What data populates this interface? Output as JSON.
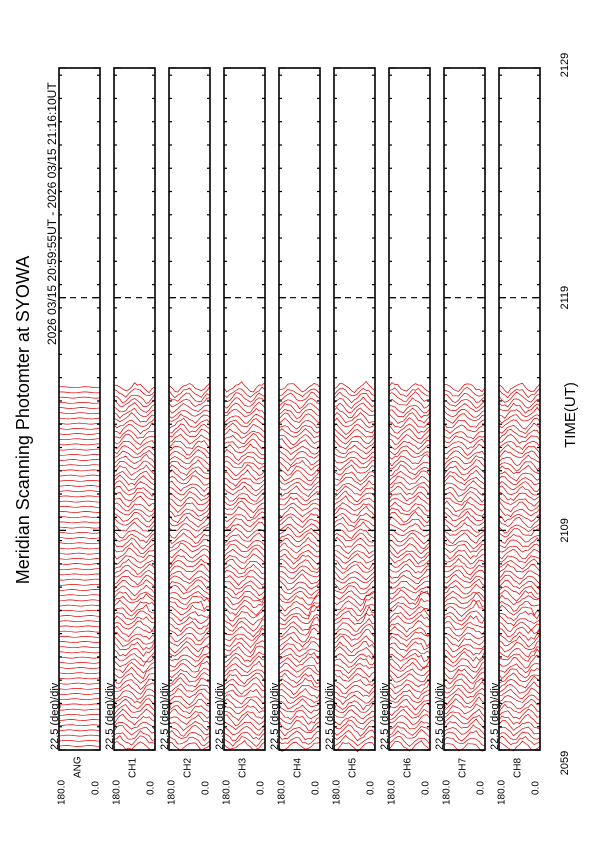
{
  "title": "Meridian Scanning Photomter at SYOWA",
  "time_range": "2026 03/15 20:59:55UT - 2026 03/15 21:16:10UT",
  "x_label": "TIME(UT)",
  "time_ticks": [
    "2059",
    "2109",
    "2119",
    "2129"
  ],
  "panels": [
    {
      "scale": "22.5 (deg)/div",
      "label": "ANG",
      "top": "180.0",
      "bottom": "0.0"
    },
    {
      "scale": "22.5 (deg)/div",
      "label": "CH1",
      "top": "180.0",
      "bottom": "0.0"
    },
    {
      "scale": "22.5 (deg)/div",
      "label": "CH2",
      "top": "180.0",
      "bottom": "0.0"
    },
    {
      "scale": "22.5 (deg)/div",
      "label": "CH3",
      "top": "180.0",
      "bottom": "0.0"
    },
    {
      "scale": "22.5 (deg)/div",
      "label": "CH4",
      "top": "180.0",
      "bottom": "0.0"
    },
    {
      "scale": "22.5 (deg)/div",
      "label": "CH5",
      "top": "180.0",
      "bottom": "0.0"
    },
    {
      "scale": "22.5 (deg)/div",
      "label": "CH6",
      "top": "180.0",
      "bottom": "0.0"
    },
    {
      "scale": "22.5 (deg)/div",
      "label": "CH7",
      "top": "180.0",
      "bottom": "0.0"
    },
    {
      "scale": "22.5 (deg)/div",
      "label": "CH8",
      "top": "180.0",
      "bottom": "0.0"
    }
  ]
}
